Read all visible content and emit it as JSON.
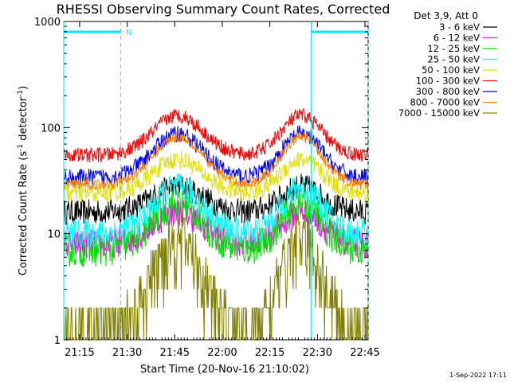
{
  "chart_data": {
    "type": "line",
    "title": "RHESSI Observing Summary Count Rates, Corrected",
    "xlabel": "Start Time (20-Nov-16 21:10:02)",
    "ylabel": "Corrected Count Rate (s",
    "ylabel_sup1": "-1",
    "ylabel_mid": " detector",
    "ylabel_sup2": "-1",
    "ylabel_end": ")",
    "y_scale": "log",
    "ylim": [
      1,
      1000
    ],
    "xlim_minutes": [
      0,
      96
    ],
    "x_tick_labels": [
      "21:15",
      "21:30",
      "21:45",
      "22:00",
      "22:15",
      "22:30",
      "22:45"
    ],
    "x_tick_minutes": [
      5,
      20,
      35,
      50,
      65,
      80,
      95
    ],
    "y_tick_labels": [
      "1",
      "10",
      "100",
      "1000"
    ],
    "y_tick_values": [
      1,
      10,
      100,
      1000
    ],
    "legend_header": "Det 3,9, Att 0",
    "legend_position": "right-outside",
    "footer_timestamp": "1-Sep-2022 17:11",
    "night_marker_label": "N",
    "night_intervals_minutes": [
      [
        0,
        18
      ],
      [
        78,
        96
      ]
    ],
    "series": [
      {
        "name": "3 - 6 keV",
        "color": "#000000",
        "base": 16,
        "peak": 28,
        "noise": 0.12
      },
      {
        "name": "6 - 12 keV",
        "color": "#ff00ff",
        "base": 8,
        "peak": 16,
        "noise": 0.14
      },
      {
        "name": "12 - 25 keV",
        "color": "#00e000",
        "base": 7,
        "peak": 19,
        "noise": 0.16
      },
      {
        "name": "25 - 50 keV",
        "color": "#00ffff",
        "base": 10,
        "peak": 27,
        "noise": 0.14
      },
      {
        "name": "50 - 100 keV",
        "color": "#e0e000",
        "base": 24,
        "peak": 50,
        "noise": 0.09
      },
      {
        "name": "100 - 300 keV",
        "color": "#ff0000",
        "base": 55,
        "peak": 130,
        "noise": 0.07
      },
      {
        "name": "300 - 800 keV",
        "color": "#0000ff",
        "base": 34,
        "peak": 88,
        "noise": 0.08
      },
      {
        "name": "800 - 7000 keV",
        "color": "#ff8000",
        "base": 29,
        "peak": 82,
        "noise": 0.05
      },
      {
        "name": "7000 - 15000 keV",
        "color": "#808000",
        "base": 1.3,
        "peak": 9.5,
        "noise": 0.35
      }
    ]
  }
}
